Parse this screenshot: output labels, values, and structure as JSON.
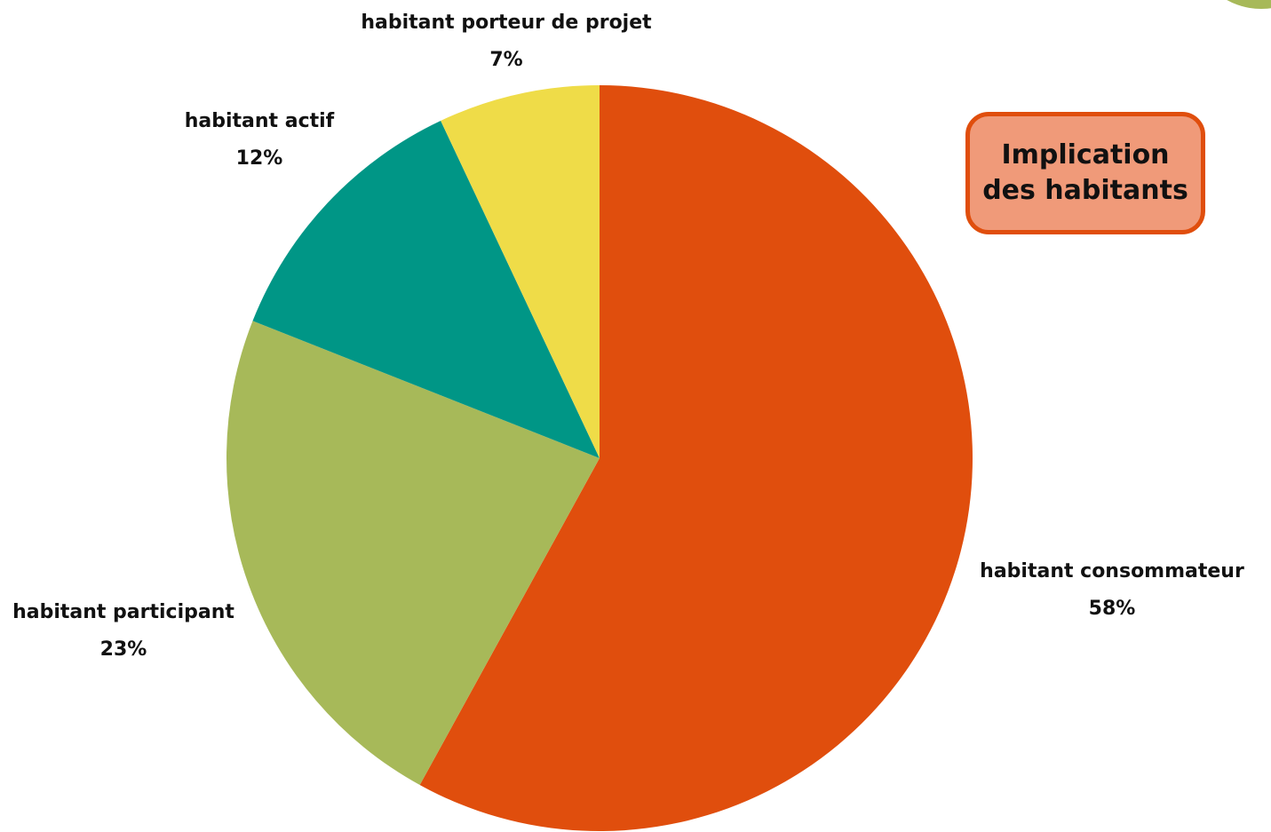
{
  "title": {
    "line1": "Implication",
    "line2": "des habitants",
    "fill": "#f09a79",
    "border": "#e04e0d"
  },
  "decor": {
    "corner_blob_color": "#a7b959"
  },
  "chart_data": {
    "type": "pie",
    "title": "Implication des habitants",
    "start": "12 o'clock",
    "direction": "clockwise",
    "slices": [
      {
        "name": "habitant consommateur",
        "value": 58,
        "value_label": "58%",
        "color": "#e04e0d"
      },
      {
        "name": "habitant participant",
        "value": 23,
        "value_label": "23%",
        "color": "#a7b959"
      },
      {
        "name": "habitant actif",
        "value": 12,
        "value_label": "12%",
        "color": "#009686"
      },
      {
        "name": "habitant porteur de projet",
        "value": 7,
        "value_label": "7%",
        "color": "#efdc48"
      }
    ]
  }
}
